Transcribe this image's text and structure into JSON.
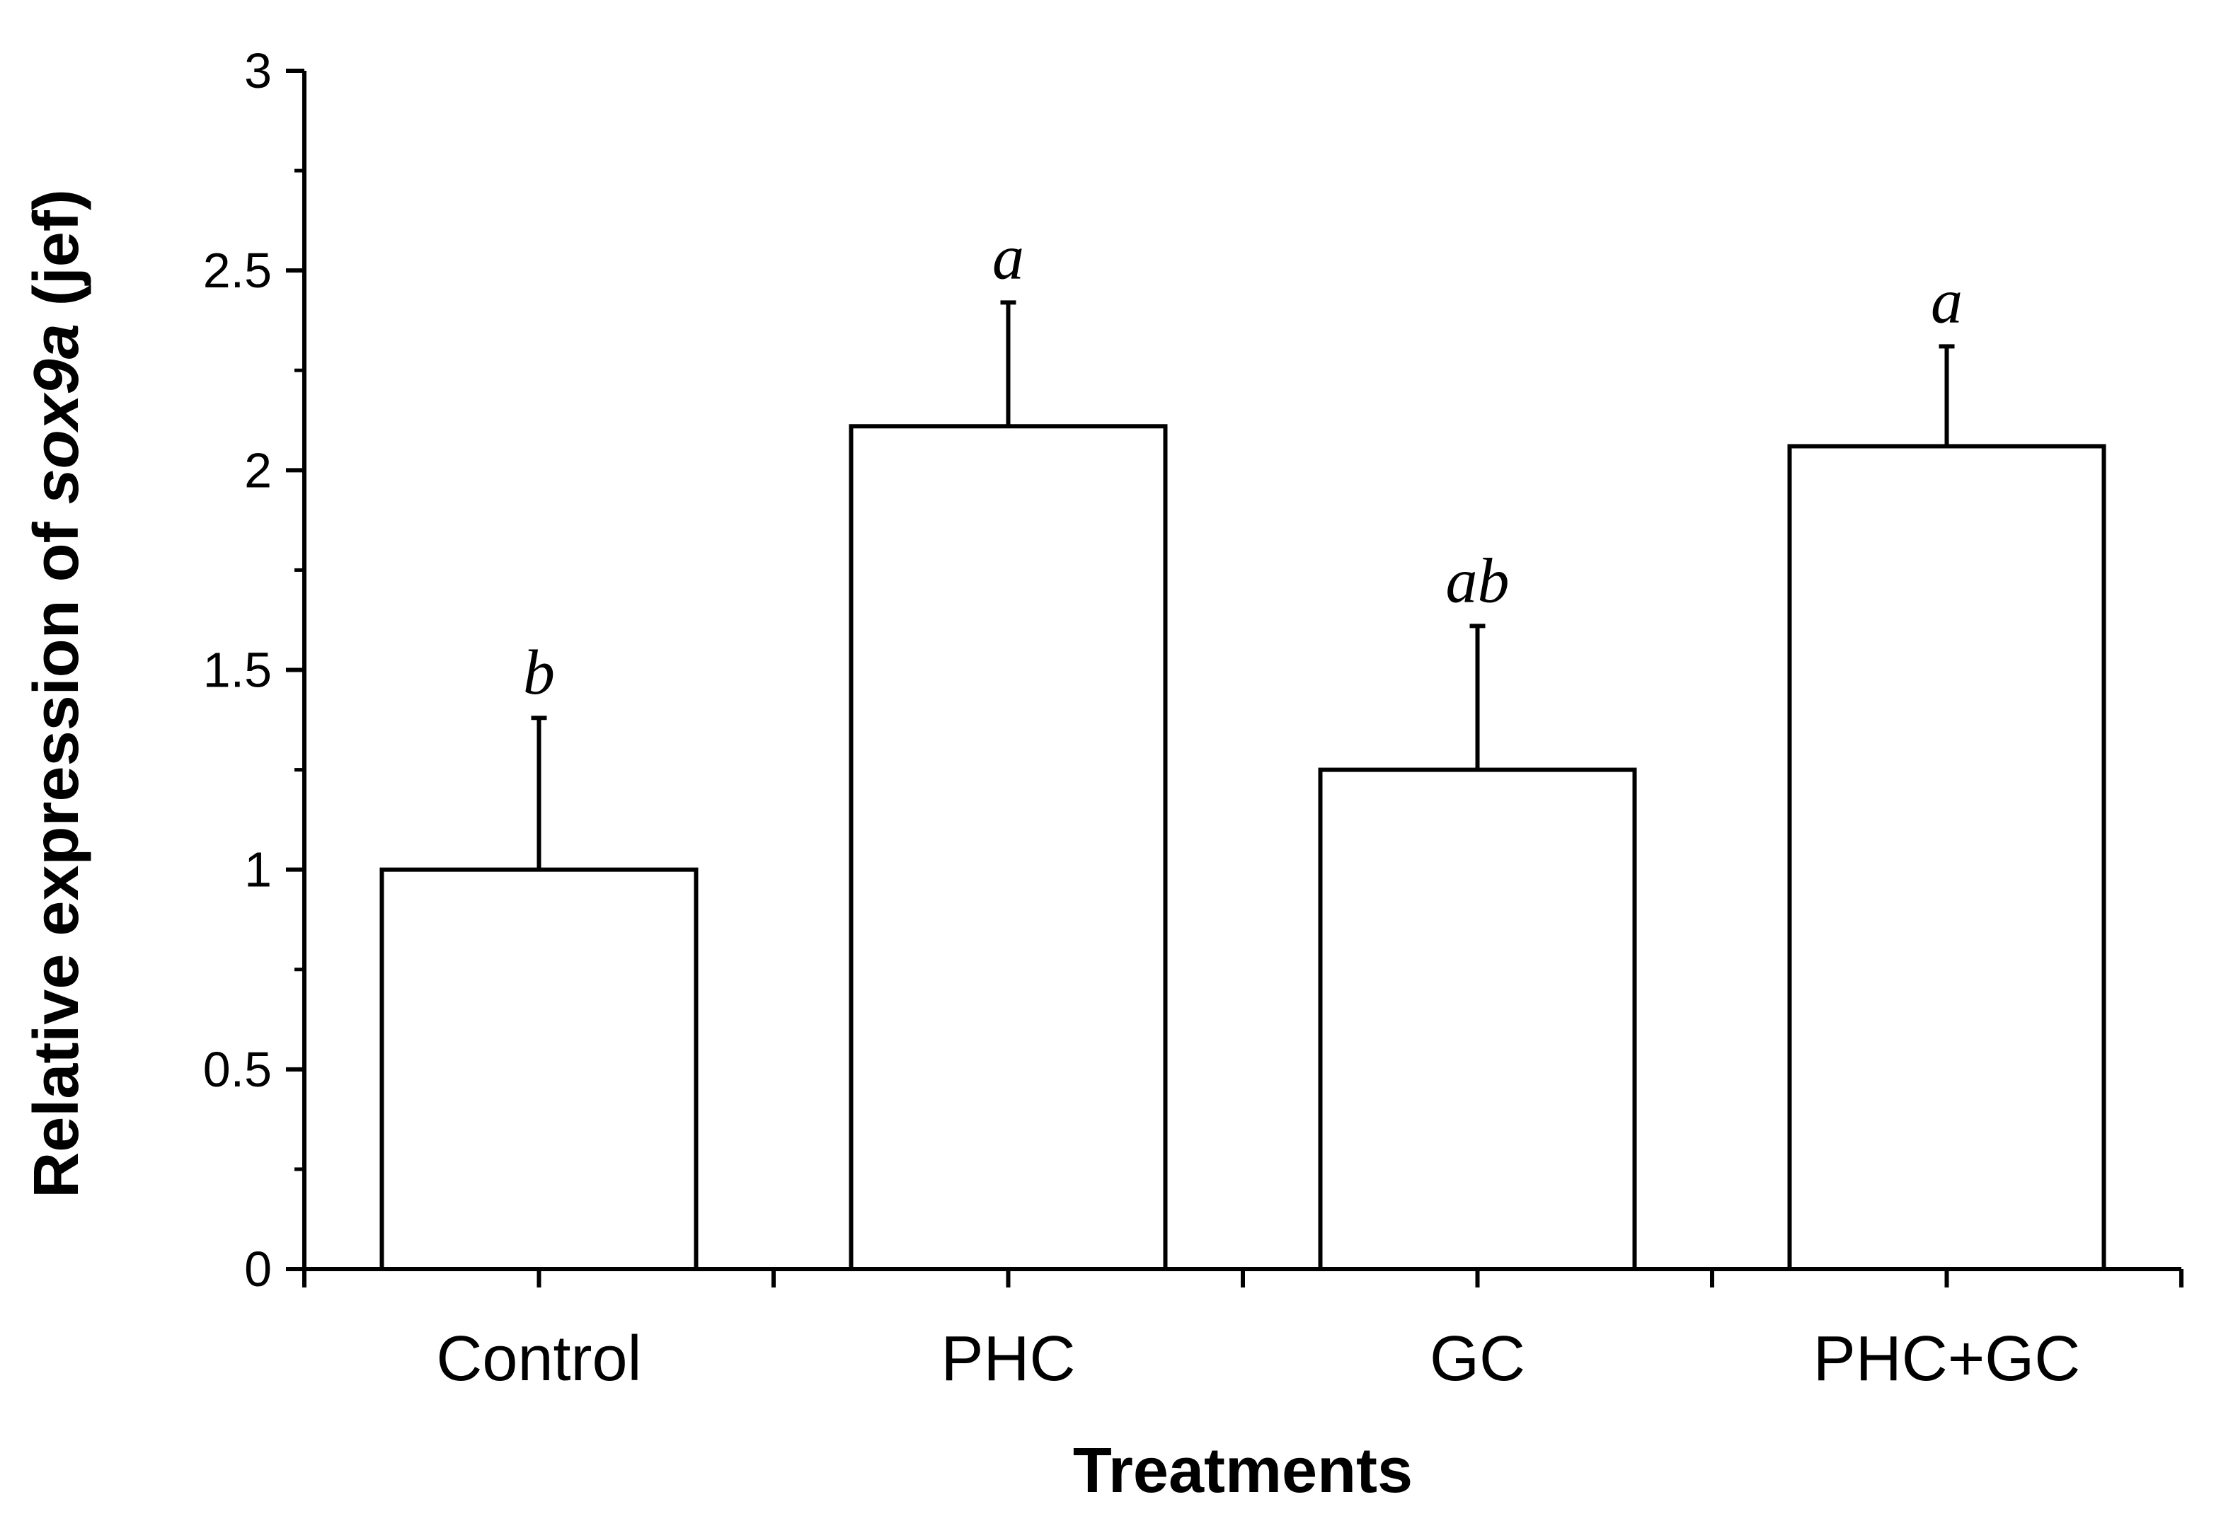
{
  "chart_data": {
    "type": "bar",
    "title": "",
    "xlabel": "Treatments",
    "ylabel_prefix": "Relative expression of ",
    "ylabel_gene": "sox9a",
    "ylabel_suffix": " (jef)",
    "ylim": [
      0,
      3
    ],
    "major_ticks": [
      0,
      0.5,
      1,
      1.5,
      2,
      2.5,
      3
    ],
    "major_tick_labels": [
      "0",
      "0.5",
      "1",
      "1.5",
      "2",
      "2.5",
      "3"
    ],
    "minor_ticks": [
      0.25,
      0.75,
      1.25,
      1.75,
      2.25,
      2.75
    ],
    "categories": [
      "Control",
      "PHC",
      "GC",
      "PHC+GC"
    ],
    "values": [
      1.0,
      2.11,
      1.25,
      2.06
    ],
    "error_upper": [
      0.38,
      0.31,
      0.36,
      0.25
    ],
    "significance_letters": [
      "b",
      "a",
      "ab",
      "a"
    ],
    "colors": {
      "bar_fill": "#ffffff",
      "stroke": "#000000"
    }
  }
}
